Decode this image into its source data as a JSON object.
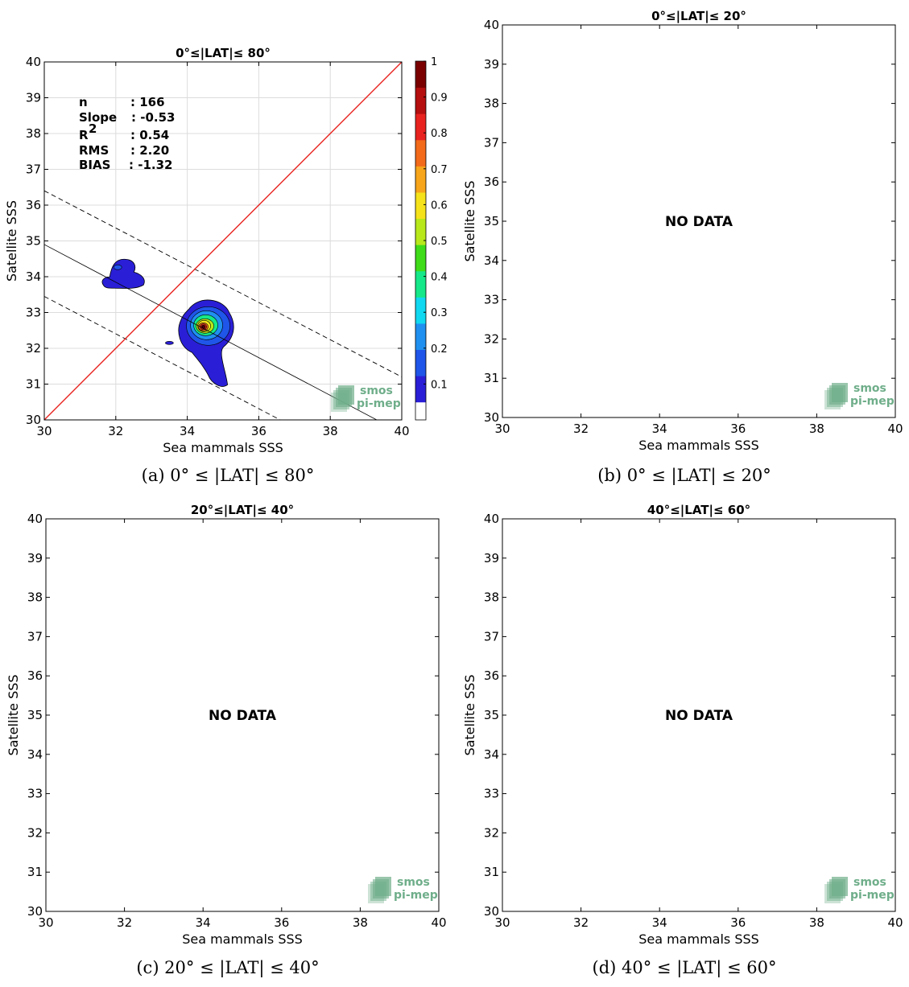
{
  "chart_data": [
    {
      "type": "contour-scatter",
      "title": "0°≤|LAT|≤ 80°",
      "caption": "(a) 0° ≤ |LAT| ≤ 80°",
      "xlabel": "Sea mammals SSS",
      "ylabel": "Satellite SSS",
      "xlim": [
        30,
        40
      ],
      "ylim": [
        30,
        40
      ],
      "xticks": [
        "30",
        "32",
        "34",
        "36",
        "38",
        "40"
      ],
      "yticks": [
        "30",
        "31",
        "32",
        "33",
        "34",
        "35",
        "36",
        "37",
        "38",
        "39",
        "40"
      ],
      "grid": true,
      "stats": [
        {
          "label": "n",
          "value": ": 166"
        },
        {
          "label": "Slope",
          "value": ": -0.53"
        },
        {
          "label": "R",
          "sup": "2",
          "value": ": 0.54"
        },
        {
          "label": "RMS",
          "value": ": 2.20"
        },
        {
          "label": "BIAS",
          "value": ": -1.32"
        }
      ],
      "identity_line": {
        "x": [
          30,
          40
        ],
        "y": [
          30,
          40
        ],
        "color": "#e8231f"
      },
      "fit_line": {
        "x": [
          30,
          39.3
        ],
        "y": [
          34.9,
          30.0
        ]
      },
      "fit_band_upper": {
        "x": [
          30,
          40
        ],
        "y": [
          36.4,
          31.2
        ]
      },
      "fit_band_lower": {
        "x": [
          30,
          36.6
        ],
        "y": [
          33.45,
          30.0
        ]
      },
      "colorbar": {
        "ticks": [
          "0.1",
          "0.2",
          "0.3",
          "0.4",
          "0.5",
          "0.6",
          "0.7",
          "0.8",
          "0.9",
          "1"
        ],
        "min": 0,
        "max": 1
      },
      "density_clusters": [
        {
          "center": [
            32.1,
            33.95
          ],
          "peak": 0.1
        },
        {
          "center": [
            34.45,
            32.6
          ],
          "peak": 1.0
        },
        {
          "center": [
            33.5,
            32.15
          ],
          "peak": 0.1
        }
      ],
      "no_data": false
    },
    {
      "type": "scatter",
      "title": "0°≤|LAT|≤ 20°",
      "caption": "(b) 0° ≤ |LAT| ≤ 20°",
      "xlabel": "Sea mammals SSS",
      "ylabel": "Satellite SSS",
      "xlim": [
        30,
        40
      ],
      "ylim": [
        30,
        40
      ],
      "xticks": [
        "30",
        "32",
        "34",
        "36",
        "38",
        "40"
      ],
      "yticks": [
        "30",
        "31",
        "32",
        "33",
        "34",
        "35",
        "36",
        "37",
        "38",
        "39",
        "40"
      ],
      "no_data": true,
      "no_data_text": "NO DATA"
    },
    {
      "type": "scatter",
      "title": "20°≤|LAT|≤ 40°",
      "caption": "(c) 20° ≤ |LAT| ≤ 40°",
      "xlabel": "Sea mammals SSS",
      "ylabel": "Satellite SSS",
      "xlim": [
        30,
        40
      ],
      "ylim": [
        30,
        40
      ],
      "xticks": [
        "30",
        "32",
        "34",
        "36",
        "38",
        "40"
      ],
      "yticks": [
        "30",
        "31",
        "32",
        "33",
        "34",
        "35",
        "36",
        "37",
        "38",
        "39",
        "40"
      ],
      "no_data": true,
      "no_data_text": "NO DATA"
    },
    {
      "type": "scatter",
      "title": "40°≤|LAT|≤ 60°",
      "caption": "(d) 40° ≤ |LAT| ≤ 60°",
      "xlabel": "Sea mammals SSS",
      "ylabel": "Satellite SSS",
      "xlim": [
        30,
        40
      ],
      "ylim": [
        30,
        40
      ],
      "xticks": [
        "30",
        "32",
        "34",
        "36",
        "38",
        "40"
      ],
      "yticks": [
        "30",
        "31",
        "32",
        "33",
        "34",
        "35",
        "36",
        "37",
        "38",
        "39",
        "40"
      ],
      "no_data": true,
      "no_data_text": "NO DATA"
    }
  ],
  "logo": {
    "line1": "smos",
    "line2": "pi-mep",
    "color": "#6fae8a"
  },
  "colorbar_colors": [
    "#5a00a8",
    "#2a1fd6",
    "#1f55e8",
    "#1f90f0",
    "#10d8f0",
    "#15e888",
    "#3fdc1a",
    "#b8e81a",
    "#f5e21a",
    "#f7a51a",
    "#f26a1a",
    "#e8231f",
    "#b50f0f",
    "#7a0000"
  ]
}
